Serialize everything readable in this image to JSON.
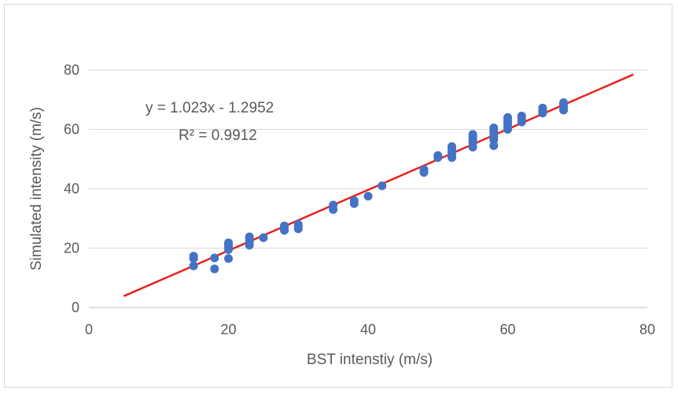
{
  "chart_data": {
    "type": "scatter",
    "title": "",
    "xlabel": "BST intenstiy (m/s)",
    "ylabel": "Simulated intensity (m/s)",
    "xlim": [
      0,
      80
    ],
    "ylim": [
      0,
      80
    ],
    "x_ticks": [
      0,
      20,
      40,
      60,
      80
    ],
    "y_ticks": [
      0,
      20,
      40,
      60,
      80
    ],
    "grid": "horizontal",
    "legend": "none",
    "point_color": "#4472c4",
    "trendline_color": "#e8231e",
    "trendline": {
      "slope": 1.023,
      "intercept": -1.2952,
      "x_range": [
        5,
        78
      ],
      "equation": "y = 1.023x - 1.2952",
      "r_squared": "R² = 0.9912"
    },
    "points": [
      [
        15,
        14
      ],
      [
        15,
        16.5
      ],
      [
        15,
        17.3
      ],
      [
        18,
        13
      ],
      [
        18,
        16.7
      ],
      [
        20,
        16.5
      ],
      [
        20,
        19.5
      ],
      [
        20,
        20.5
      ],
      [
        20,
        21.3
      ],
      [
        20,
        21.8
      ],
      [
        23,
        21
      ],
      [
        23,
        22
      ],
      [
        23,
        23
      ],
      [
        23,
        23.8
      ],
      [
        25,
        23.5
      ],
      [
        28,
        26
      ],
      [
        28,
        27
      ],
      [
        28,
        27.5
      ],
      [
        30,
        26.5
      ],
      [
        30,
        27.5
      ],
      [
        30,
        28
      ],
      [
        35,
        33
      ],
      [
        35,
        34.5
      ],
      [
        38,
        35
      ],
      [
        38,
        36
      ],
      [
        40,
        37.5
      ],
      [
        42,
        41
      ],
      [
        48,
        45.5
      ],
      [
        48,
        46.5
      ],
      [
        50,
        50.5
      ],
      [
        50,
        51.2
      ],
      [
        52,
        50.5
      ],
      [
        52,
        51.5
      ],
      [
        52,
        52.5
      ],
      [
        52,
        53.5
      ],
      [
        52,
        54.2
      ],
      [
        55,
        54
      ],
      [
        55,
        55.5
      ],
      [
        55,
        56.5
      ],
      [
        55,
        57.5
      ],
      [
        55,
        58.3
      ],
      [
        58,
        54.5
      ],
      [
        58,
        56.5
      ],
      [
        58,
        57.5
      ],
      [
        58,
        58.5
      ],
      [
        58,
        59.5
      ],
      [
        58,
        60.5
      ],
      [
        60,
        60
      ],
      [
        60,
        61
      ],
      [
        60,
        62
      ],
      [
        60,
        63
      ],
      [
        60,
        64
      ],
      [
        62,
        62.5
      ],
      [
        62,
        63.5
      ],
      [
        62,
        64.5
      ],
      [
        65,
        65.5
      ],
      [
        65,
        66.3
      ],
      [
        65,
        67.2
      ],
      [
        68,
        66.5
      ],
      [
        68,
        67.5
      ],
      [
        68,
        68.5
      ],
      [
        68,
        69
      ]
    ]
  }
}
